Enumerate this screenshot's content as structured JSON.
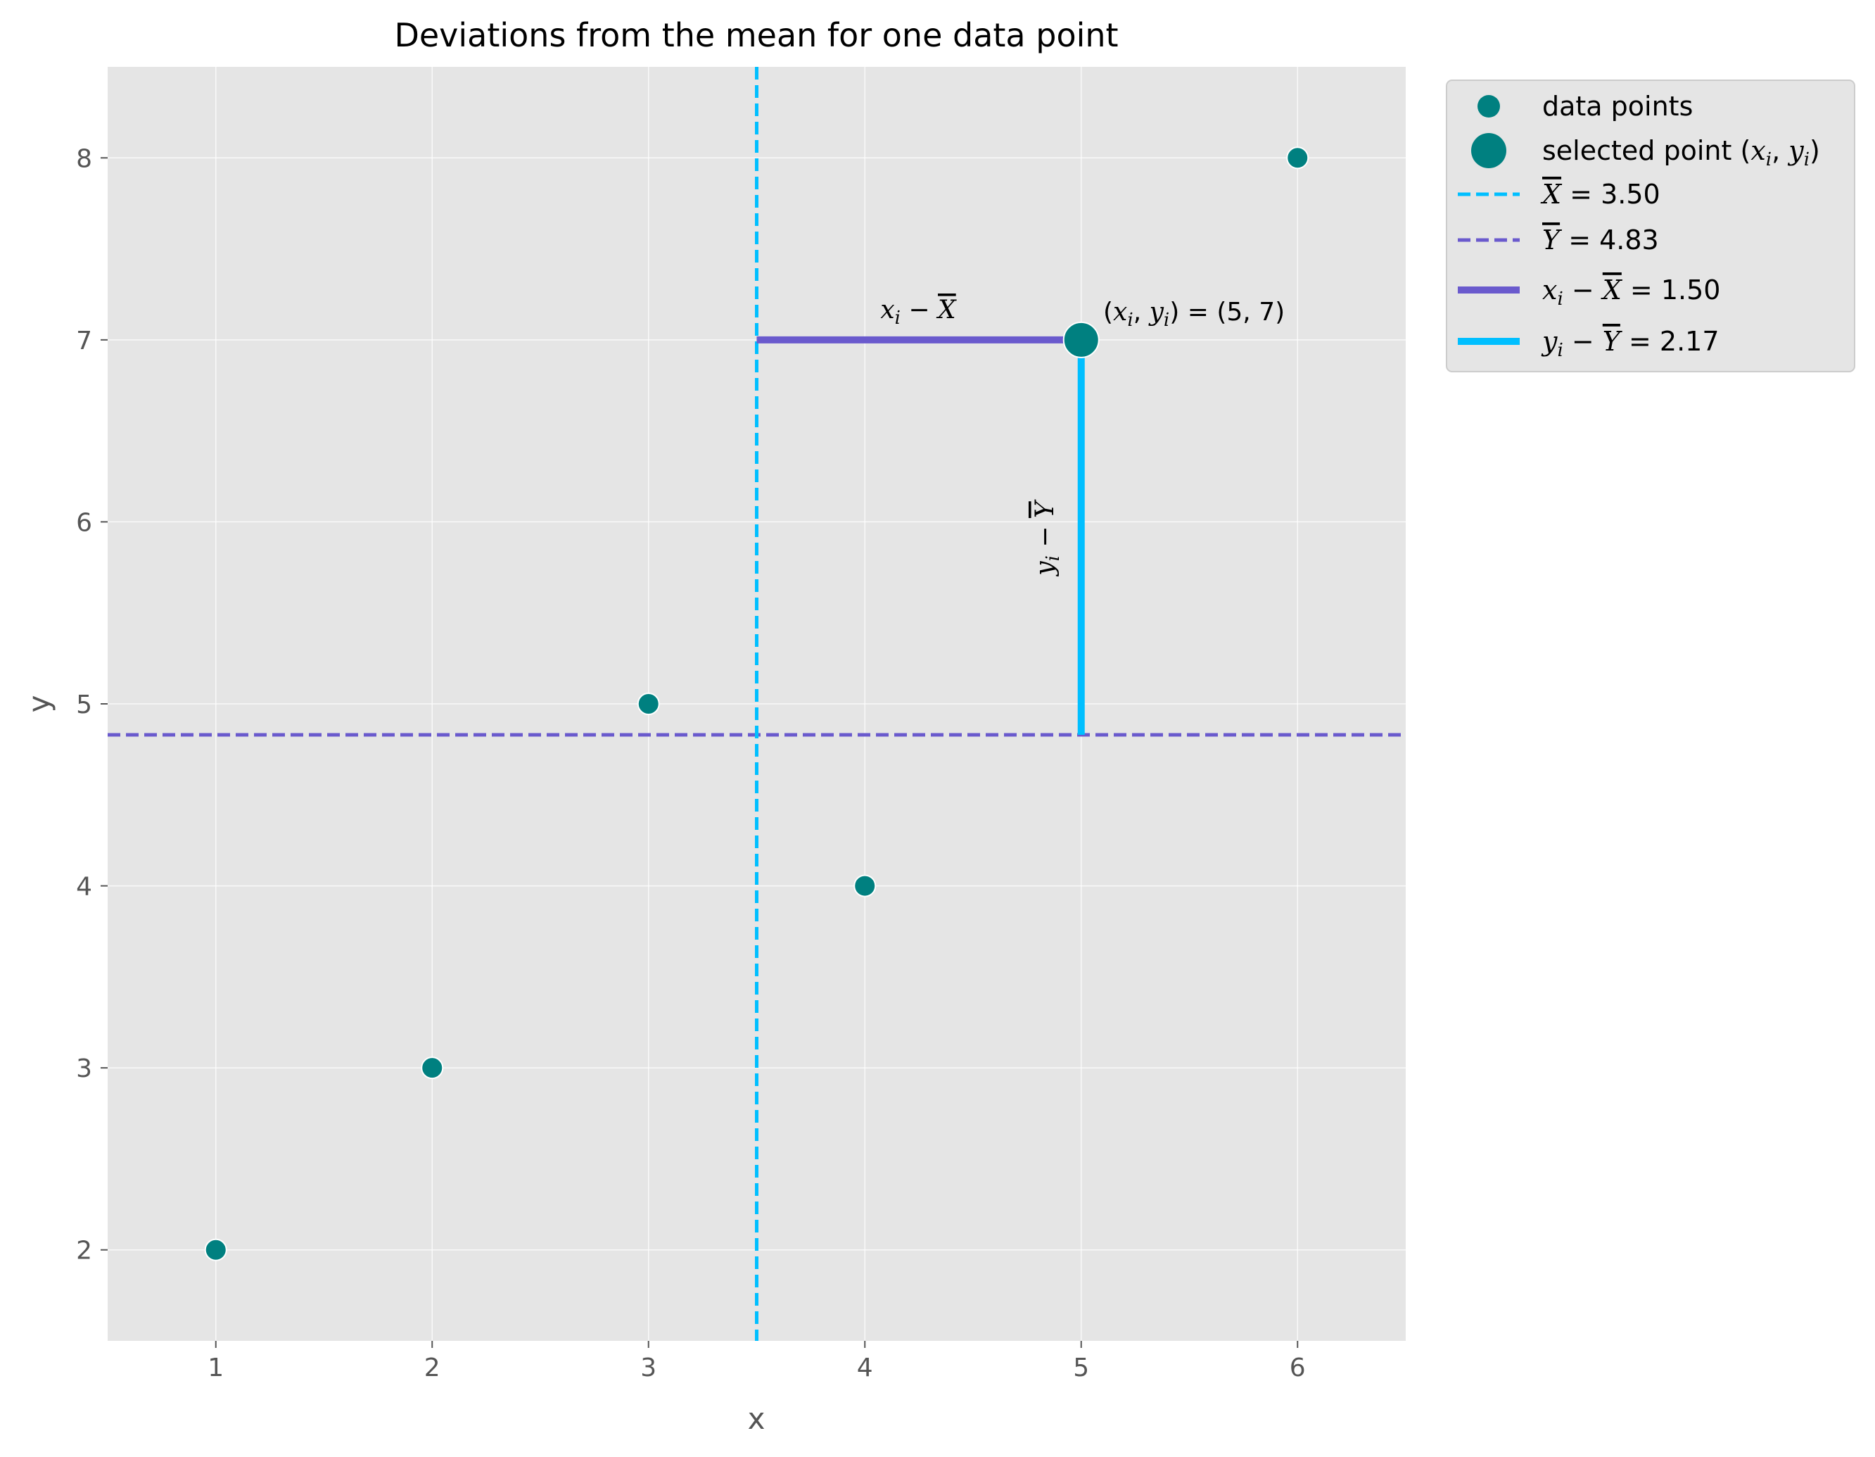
{
  "chart_data": {
    "type": "scatter",
    "title": "Deviations from the mean for one data point",
    "xlabel": "x",
    "ylabel": "y",
    "xlim": [
      0.5,
      6.5
    ],
    "ylim": [
      1.5,
      8.5
    ],
    "xticks": [
      1,
      2,
      3,
      4,
      5,
      6
    ],
    "yticks": [
      2,
      3,
      4,
      5,
      6,
      7,
      8
    ],
    "grid": true,
    "legend_position": "outside-top-right",
    "colors": {
      "point": "#008080",
      "x_mean": "#00bfff",
      "y_mean": "#6a5acd",
      "dx": "#6a5acd",
      "dy": "#00bfff",
      "background": "#e5e5e5"
    },
    "series": [
      {
        "name": "data points",
        "x": [
          1,
          2,
          3,
          4,
          6
        ],
        "y": [
          2,
          3,
          5,
          4,
          8
        ]
      },
      {
        "name": "selected point",
        "x": [
          5
        ],
        "y": [
          7
        ]
      }
    ],
    "x_mean": 3.5,
    "y_mean": 4.83,
    "selected": {
      "x": 5,
      "y": 7
    },
    "dx": 1.5,
    "dy": 2.17,
    "annotations": {
      "dx_var": "x",
      "dx_sub": "i",
      "dx_mean": "X",
      "dy_var": "y",
      "dy_sub": "i",
      "dy_mean": "Y",
      "point_label": "(5, 7)"
    },
    "legend": [
      {
        "kind": "point",
        "label": "data points"
      },
      {
        "kind": "bigpoint",
        "label": "selected point"
      },
      {
        "kind": "dash-cyan",
        "label": "= 3.50"
      },
      {
        "kind": "dash-purple",
        "label": "= 4.83"
      },
      {
        "kind": "solid-purple",
        "label": "= 1.50"
      },
      {
        "kind": "solid-cyan",
        "label": "= 2.17"
      }
    ]
  }
}
